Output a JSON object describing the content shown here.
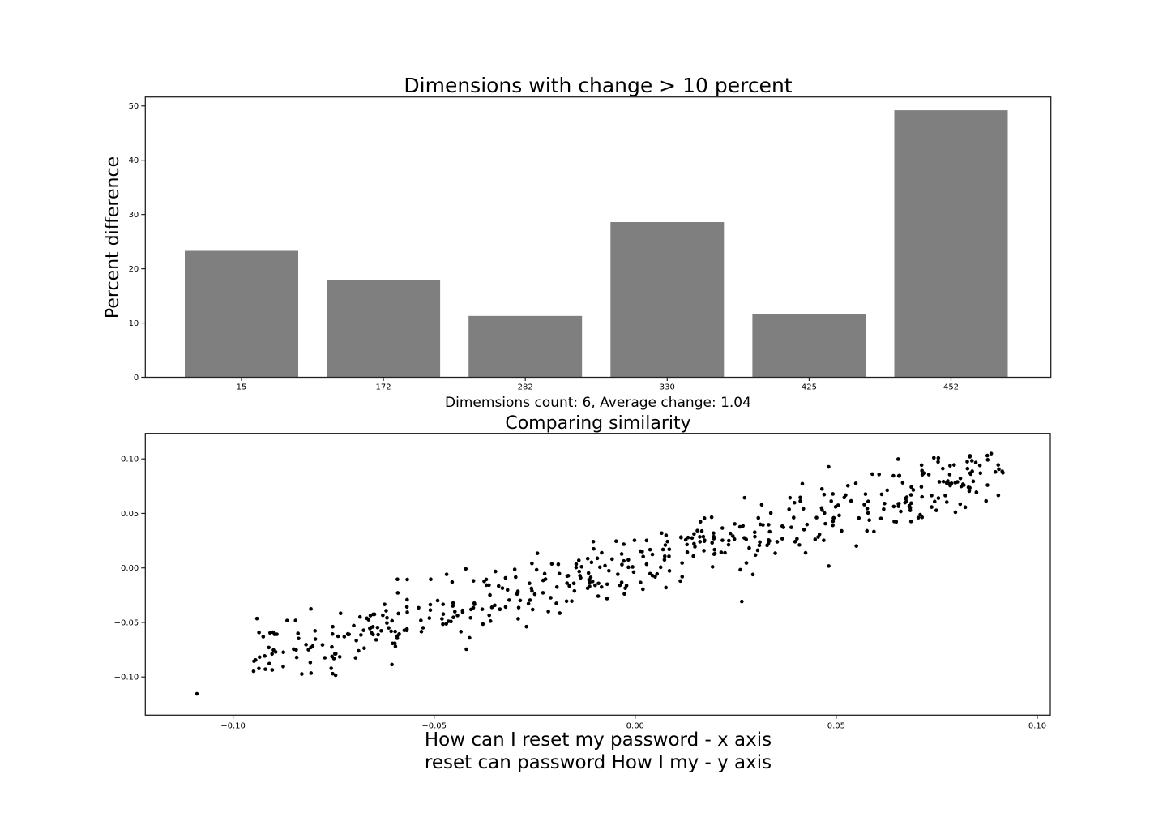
{
  "figure": {
    "background": "#ffffff",
    "text_color": "#000000",
    "spine_color": "#222222"
  },
  "chart_data": [
    {
      "type": "bar",
      "title": "Dimensions with change > 10 percent",
      "ylabel": "Percent difference",
      "xlabel": "Dimemsions count: 6, Average change: 1.04",
      "categories": [
        "15",
        "172",
        "282",
        "330",
        "425",
        "452"
      ],
      "values": [
        23.3,
        17.9,
        11.3,
        28.6,
        11.6,
        49.2
      ],
      "ylim": [
        0,
        51.65
      ],
      "yticks": [
        {
          "v": 0,
          "label": "0"
        },
        {
          "v": 10,
          "label": "10"
        },
        {
          "v": 20,
          "label": "20"
        },
        {
          "v": 30,
          "label": "30"
        },
        {
          "v": 40,
          "label": "40"
        },
        {
          "v": 50,
          "label": "50"
        }
      ],
      "bar_color": "#7f7f7f",
      "grid": false,
      "legend": null
    },
    {
      "type": "scatter",
      "title": "Comparing similarity",
      "xlabel_line1": "How can I reset my password - x axis",
      "xlabel_line2": "reset can password How I my - y axis",
      "xlim": [
        -0.122,
        0.103
      ],
      "ylim": [
        -0.135,
        0.123
      ],
      "xticks": [
        {
          "v": -0.1,
          "label": "−0.10"
        },
        {
          "v": -0.05,
          "label": "−0.05"
        },
        {
          "v": 0.0,
          "label": "0.00"
        },
        {
          "v": 0.05,
          "label": "0.05"
        },
        {
          "v": 0.1,
          "label": "0.10"
        }
      ],
      "yticks": [
        {
          "v": 0.1,
          "label": "0.10"
        },
        {
          "v": 0.05,
          "label": "0.05"
        },
        {
          "v": 0.0,
          "label": "0.00"
        },
        {
          "v": -0.05,
          "label": "−0.05"
        },
        {
          "v": -0.1,
          "label": "−0.10"
        }
      ],
      "marker_color": "#000000",
      "marker_radius": 2.3,
      "points_estimated": true,
      "n_points": 500,
      "seed": 11,
      "x_range": [
        -0.0955,
        0.0915
      ],
      "trend_slope": 0.93,
      "trend_intercept": 0.003,
      "noise_sigma": 0.0155,
      "y_clamp": [
        -0.0985,
        0.106
      ],
      "outlier": [
        -0.109,
        -0.1155
      ],
      "grid": false,
      "legend": null
    }
  ]
}
